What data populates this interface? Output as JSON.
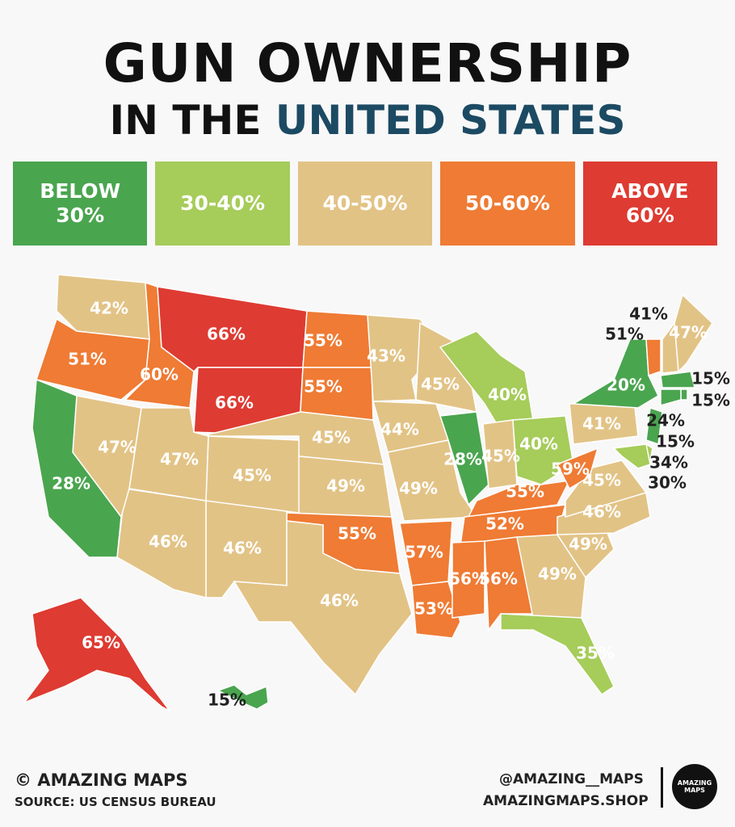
{
  "header": {
    "title_line1": "GUN OWNERSHIP",
    "title_line2a": "IN THE",
    "title_line2b": "UNITED STATES"
  },
  "legend": [
    {
      "label": "BELOW 30%",
      "color": "#4aa54f"
    },
    {
      "label": "30-40%",
      "color": "#a6cc5a"
    },
    {
      "label": "40-50%",
      "color": "#e2c386"
    },
    {
      "label": "50-60%",
      "color": "#ef7b34"
    },
    {
      "label": "ABOVE 60%",
      "color": "#de3b32"
    }
  ],
  "states": [
    {
      "label": "42%",
      "color": "#e2c386"
    },
    {
      "label": "51%",
      "color": "#ef7b34"
    },
    {
      "label": "60%",
      "color": "#ef7b34"
    },
    {
      "label": "66%",
      "color": "#de3b32"
    },
    {
      "label": "66%",
      "color": "#de3b32"
    },
    {
      "label": "55%",
      "color": "#ef7b34"
    },
    {
      "label": "55%",
      "color": "#ef7b34"
    },
    {
      "label": "45%",
      "color": "#e2c386"
    },
    {
      "label": "49%",
      "color": "#e2c386"
    },
    {
      "label": "55%",
      "color": "#ef7b34"
    },
    {
      "label": "46%",
      "color": "#e2c386"
    },
    {
      "label": "46%",
      "color": "#e2c386"
    },
    {
      "label": "46%",
      "color": "#e2c386"
    },
    {
      "label": "45%",
      "color": "#e2c386"
    },
    {
      "label": "47%",
      "color": "#e2c386"
    },
    {
      "label": "47%",
      "color": "#e2c386"
    },
    {
      "label": "28%",
      "color": "#4aa54f"
    },
    {
      "label": "43%",
      "color": "#e2c386"
    },
    {
      "label": "44%",
      "color": "#e2c386"
    },
    {
      "label": "49%",
      "color": "#e2c386"
    },
    {
      "label": "57%",
      "color": "#ef7b34"
    },
    {
      "label": "53%",
      "color": "#ef7b34"
    },
    {
      "label": "45%",
      "color": "#e2c386"
    },
    {
      "label": "28%",
      "color": "#4aa54f"
    },
    {
      "label": "40%",
      "color": "#a6cc5a"
    },
    {
      "label": "45%",
      "color": "#e2c386"
    },
    {
      "label": "40%",
      "color": "#a6cc5a"
    },
    {
      "label": "55%",
      "color": "#ef7b34"
    },
    {
      "label": "52%",
      "color": "#ef7b34"
    },
    {
      "label": "56%",
      "color": "#ef7b34"
    },
    {
      "label": "56%",
      "color": "#ef7b34"
    },
    {
      "label": "49%",
      "color": "#e2c386"
    },
    {
      "label": "35%",
      "color": "#a6cc5a"
    },
    {
      "label": "49%",
      "color": "#e2c386"
    },
    {
      "label": "46%",
      "color": "#e2c386"
    },
    {
      "label": "45%",
      "color": "#e2c386"
    },
    {
      "label": "59%",
      "color": "#ef7b34"
    },
    {
      "label": "41%",
      "color": "#e2c386"
    },
    {
      "label": "20%",
      "color": "#4aa54f"
    },
    {
      "label": "51%",
      "color": "#ef7b34"
    },
    {
      "label": "41%",
      "color": "#e2c386"
    },
    {
      "label": "47%",
      "color": "#e2c386"
    },
    {
      "label": "15%",
      "color": "#4aa54f"
    },
    {
      "label": "15%",
      "color": "#4aa54f"
    },
    {
      "label": "24%",
      "color": "#4aa54f"
    },
    {
      "label": "15%",
      "color": "#4aa54f"
    },
    {
      "label": "34%",
      "color": "#a6cc5a"
    },
    {
      "label": "30%",
      "color": "#a6cc5a"
    },
    {
      "label": "15%",
      "color": "#4aa54f"
    },
    {
      "label": "65%",
      "color": "#de3b32"
    }
  ],
  "footer": {
    "copyright": "© AMAZING MAPS",
    "source": "SOURCE: US CENSUS BUREAU",
    "handle": "@AMAZING__MAPS",
    "site": "AMAZINGMAPS.SHOP",
    "logo": "AMAZING MAPS"
  }
}
